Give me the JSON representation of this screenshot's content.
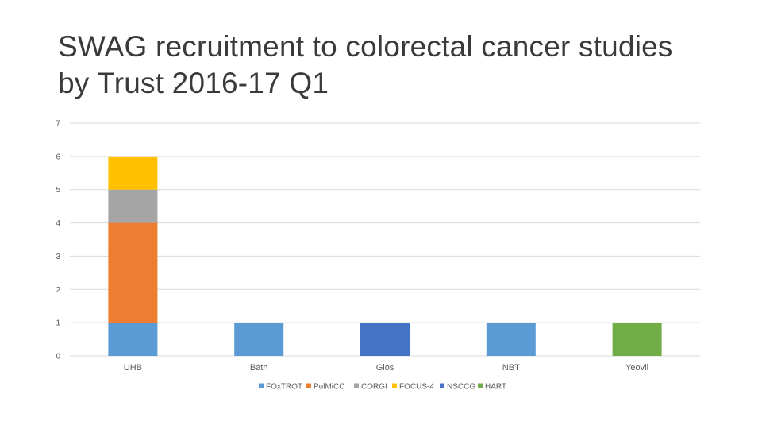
{
  "chart_data": {
    "type": "bar",
    "stacked": true,
    "title": "SWAG recruitment to colorectal cancer studies by Trust 2016-17 Q1",
    "categories": [
      "UHB",
      "Bath",
      "Glos",
      "NBT",
      "Yeovil"
    ],
    "ylim": [
      0,
      7
    ],
    "yticks": [
      0,
      1,
      2,
      3,
      4,
      5,
      6,
      7
    ],
    "grid": true,
    "legend_position": "bottom",
    "series": [
      {
        "name": "FOxTROT",
        "color": "#5B9BD5",
        "values": [
          1,
          1,
          0,
          1,
          0
        ]
      },
      {
        "name": "PulMiCC",
        "color": "#ED7D31",
        "values": [
          3,
          0,
          0,
          0,
          0
        ]
      },
      {
        "name": "CORGI",
        "color": "#A5A5A5",
        "values": [
          1,
          0,
          0,
          0,
          0
        ]
      },
      {
        "name": "FOCUS-4",
        "color": "#FFC000",
        "values": [
          1,
          0,
          0,
          0,
          0
        ]
      },
      {
        "name": "NSCCG",
        "color": "#4472C4",
        "values": [
          0,
          0,
          1,
          0,
          0
        ]
      },
      {
        "name": "HART",
        "color": "#70AD47",
        "values": [
          0,
          0,
          0,
          0,
          1
        ]
      }
    ]
  }
}
